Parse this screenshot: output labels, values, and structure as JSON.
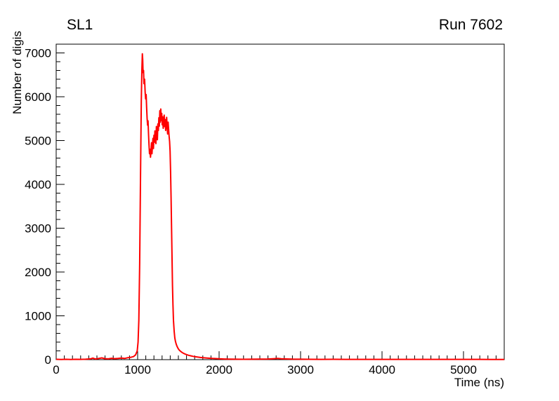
{
  "chart_data": {
    "type": "line",
    "title": "SL1",
    "annotation": "Run 7602",
    "xlabel": "Time (ns)",
    "ylabel": "Number of digis",
    "xlim": [
      0,
      5500
    ],
    "ylim": [
      0,
      7200
    ],
    "x_ticks": [
      0,
      1000,
      2000,
      3000,
      4000,
      5000
    ],
    "y_ticks": [
      0,
      1000,
      2000,
      3000,
      4000,
      5000,
      6000,
      7000
    ],
    "x_minor_step": 100,
    "y_minor_step": 200,
    "grid": false,
    "legend": "none",
    "line_color": "#ff0000",
    "axis_color": "#000000",
    "points": [
      [
        0,
        8
      ],
      [
        60,
        5
      ],
      [
        120,
        8
      ],
      [
        180,
        5
      ],
      [
        240,
        8
      ],
      [
        300,
        6
      ],
      [
        360,
        10
      ],
      [
        420,
        18
      ],
      [
        450,
        35
      ],
      [
        480,
        15
      ],
      [
        520,
        25
      ],
      [
        560,
        40
      ],
      [
        600,
        22
      ],
      [
        640,
        18
      ],
      [
        680,
        30
      ],
      [
        720,
        22
      ],
      [
        760,
        28
      ],
      [
        800,
        35
      ],
      [
        840,
        28
      ],
      [
        880,
        45
      ],
      [
        920,
        55
      ],
      [
        950,
        70
      ],
      [
        975,
        110
      ],
      [
        995,
        200
      ],
      [
        1005,
        400
      ],
      [
        1015,
        900
      ],
      [
        1025,
        2200
      ],
      [
        1035,
        4200
      ],
      [
        1045,
        5900
      ],
      [
        1052,
        6600
      ],
      [
        1058,
        6980
      ],
      [
        1062,
        6850
      ],
      [
        1066,
        6550
      ],
      [
        1072,
        6600
      ],
      [
        1078,
        6300
      ],
      [
        1085,
        6400
      ],
      [
        1092,
        6100
      ],
      [
        1098,
        5950
      ],
      [
        1104,
        6050
      ],
      [
        1110,
        5750
      ],
      [
        1116,
        5500
      ],
      [
        1122,
        5350
      ],
      [
        1128,
        5450
      ],
      [
        1134,
        5150
      ],
      [
        1140,
        4900
      ],
      [
        1146,
        4700
      ],
      [
        1152,
        4800
      ],
      [
        1158,
        4620
      ],
      [
        1164,
        4750
      ],
      [
        1170,
        4950
      ],
      [
        1176,
        4700
      ],
      [
        1182,
        4880
      ],
      [
        1188,
        5050
      ],
      [
        1194,
        4820
      ],
      [
        1200,
        5120
      ],
      [
        1206,
        4960
      ],
      [
        1212,
        5220
      ],
      [
        1218,
        5060
      ],
      [
        1224,
        4930
      ],
      [
        1230,
        5320
      ],
      [
        1236,
        5160
      ],
      [
        1242,
        5020
      ],
      [
        1248,
        5380
      ],
      [
        1254,
        5230
      ],
      [
        1260,
        5520
      ],
      [
        1266,
        5330
      ],
      [
        1272,
        5680
      ],
      [
        1278,
        5420
      ],
      [
        1284,
        5720
      ],
      [
        1290,
        5460
      ],
      [
        1296,
        5620
      ],
      [
        1302,
        5360
      ],
      [
        1308,
        5540
      ],
      [
        1314,
        5280
      ],
      [
        1320,
        5430
      ],
      [
        1326,
        5580
      ],
      [
        1332,
        5320
      ],
      [
        1338,
        5480
      ],
      [
        1344,
        5230
      ],
      [
        1350,
        5380
      ],
      [
        1356,
        5530
      ],
      [
        1362,
        5300
      ],
      [
        1368,
        5150
      ],
      [
        1374,
        5420
      ],
      [
        1380,
        5260
      ],
      [
        1386,
        5100
      ],
      [
        1392,
        4980
      ],
      [
        1398,
        4760
      ],
      [
        1404,
        4300
      ],
      [
        1410,
        3700
      ],
      [
        1416,
        3000
      ],
      [
        1422,
        2300
      ],
      [
        1428,
        1700
      ],
      [
        1434,
        1250
      ],
      [
        1440,
        900
      ],
      [
        1448,
        650
      ],
      [
        1456,
        500
      ],
      [
        1464,
        420
      ],
      [
        1472,
        360
      ],
      [
        1482,
        310
      ],
      [
        1492,
        270
      ],
      [
        1502,
        240
      ],
      [
        1515,
        210
      ],
      [
        1530,
        185
      ],
      [
        1545,
        165
      ],
      [
        1560,
        148
      ],
      [
        1580,
        130
      ],
      [
        1600,
        115
      ],
      [
        1625,
        100
      ],
      [
        1650,
        88
      ],
      [
        1680,
        75
      ],
      [
        1710,
        65
      ],
      [
        1740,
        58
      ],
      [
        1770,
        50
      ],
      [
        1800,
        45
      ],
      [
        1840,
        38
      ],
      [
        1880,
        32
      ],
      [
        1920,
        28
      ],
      [
        1960,
        24
      ],
      [
        2000,
        20
      ],
      [
        2060,
        15
      ],
      [
        2120,
        12
      ],
      [
        2200,
        10
      ],
      [
        2300,
        8
      ],
      [
        2400,
        9
      ],
      [
        2500,
        11
      ],
      [
        2600,
        14
      ],
      [
        2680,
        22
      ],
      [
        2720,
        28
      ],
      [
        2760,
        20
      ],
      [
        2820,
        16
      ],
      [
        2900,
        12
      ],
      [
        3000,
        9
      ],
      [
        3100,
        8
      ],
      [
        3250,
        7
      ],
      [
        3400,
        8
      ],
      [
        3550,
        6
      ],
      [
        3700,
        7
      ],
      [
        3850,
        6
      ],
      [
        4000,
        7
      ],
      [
        4150,
        6
      ],
      [
        4300,
        7
      ],
      [
        4450,
        6
      ],
      [
        4600,
        7
      ],
      [
        4750,
        6
      ],
      [
        4900,
        7
      ],
      [
        5050,
        6
      ],
      [
        5200,
        6
      ],
      [
        5350,
        5
      ],
      [
        5500,
        5
      ]
    ]
  }
}
